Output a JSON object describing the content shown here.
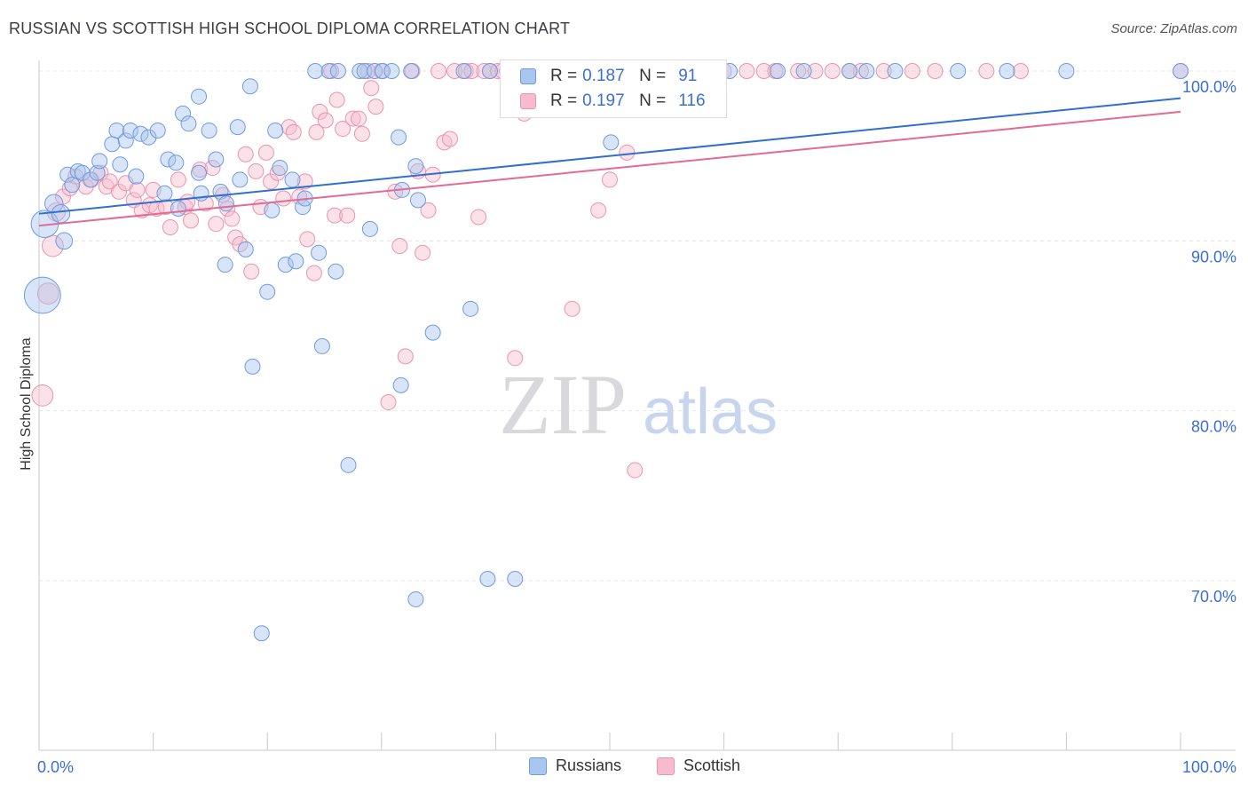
{
  "header": {
    "title": "RUSSIAN VS SCOTTISH HIGH SCHOOL DIPLOMA CORRELATION CHART",
    "source": "Source: ZipAtlas.com"
  },
  "watermark": {
    "zip": "ZIP",
    "atlas": "atlas"
  },
  "colors": {
    "russians_fill": "#a9c6ef",
    "russians_stroke": "#6f9be0",
    "russians_line": "#2f6fd1",
    "scottish_fill": "#f6bccd",
    "scottish_stroke": "#ec93ae",
    "scottish_line": "#e36a95",
    "tick_label": "#3a6fd8",
    "grid": "#e4e4ea"
  },
  "legend_top": {
    "russians": {
      "r_label": "R =",
      "r_value": "0.187",
      "n_label": "N =",
      "n_value": "91"
    },
    "scottish": {
      "r_label": "R =",
      "r_value": "0.197",
      "n_label": "N =",
      "n_value": "116"
    }
  },
  "legend_bottom": {
    "russians": "Russians",
    "scottish": "Scottish"
  },
  "chart_data": {
    "type": "scatter",
    "title": "RUSSIAN VS SCOTTISH HIGH SCHOOL DIPLOMA CORRELATION CHART",
    "xlabel": "",
    "ylabel": "High School Diploma",
    "xlim": [
      0,
      100
    ],
    "ylim": [
      60,
      101
    ],
    "x_tick_labels": [
      "0.0%",
      "100.0%"
    ],
    "y_ticks": [
      70,
      80,
      90,
      100
    ],
    "y_tick_labels": [
      "70.0%",
      "80.0%",
      "90.0%",
      "100.0%"
    ],
    "grid": true,
    "legend_position": "top-center",
    "series": [
      {
        "name": "Russians",
        "r": 0.187,
        "n": 91,
        "trend": {
          "x": [
            0,
            100
          ],
          "y": [
            91.6,
            98.4
          ]
        },
        "points": [
          [
            0.5,
            91.0,
            18
          ],
          [
            0.3,
            86.8,
            24
          ],
          [
            1.3,
            92.2,
            12
          ],
          [
            1.9,
            91.6,
            12
          ],
          [
            2.2,
            90.0,
            11
          ],
          [
            2.5,
            93.9,
            10
          ],
          [
            2.9,
            93.3,
            10
          ],
          [
            3.4,
            94.1,
            10
          ],
          [
            3.8,
            94.0,
            10
          ],
          [
            4.5,
            93.6,
            10
          ],
          [
            5.1,
            94.0,
            10
          ],
          [
            5.3,
            94.7,
            10
          ],
          [
            6.4,
            95.7,
            10
          ],
          [
            6.8,
            96.5,
            10
          ],
          [
            7.6,
            95.9,
            10
          ],
          [
            7.1,
            94.5,
            10
          ],
          [
            8.0,
            96.5,
            10
          ],
          [
            8.9,
            96.3,
            10
          ],
          [
            8.5,
            93.8,
            10
          ],
          [
            9.6,
            96.1,
            10
          ],
          [
            10.4,
            96.5,
            10
          ],
          [
            11.0,
            92.8,
            10
          ],
          [
            11.3,
            94.8,
            10
          ],
          [
            12.0,
            94.6,
            10
          ],
          [
            12.2,
            91.9,
            10
          ],
          [
            12.6,
            97.5,
            10
          ],
          [
            13.1,
            96.9,
            10
          ],
          [
            14.0,
            94.0,
            10
          ],
          [
            14.2,
            92.8,
            10
          ],
          [
            14.0,
            98.5,
            10
          ],
          [
            14.9,
            96.5,
            10
          ],
          [
            15.5,
            94.8,
            10
          ],
          [
            15.9,
            92.9,
            10
          ],
          [
            16.3,
            88.6,
            10
          ],
          [
            16.4,
            92.2,
            10
          ],
          [
            17.4,
            96.7,
            10
          ],
          [
            17.6,
            93.6,
            10
          ],
          [
            18.1,
            89.5,
            10
          ],
          [
            18.5,
            99.1,
            10
          ],
          [
            18.7,
            82.6,
            10
          ],
          [
            19.5,
            66.9,
            10
          ],
          [
            20.0,
            87.0,
            10
          ],
          [
            20.4,
            91.8,
            10
          ],
          [
            20.7,
            96.5,
            10
          ],
          [
            21.1,
            94.3,
            10
          ],
          [
            21.6,
            88.6,
            10
          ],
          [
            22.2,
            93.6,
            10
          ],
          [
            22.5,
            88.8,
            10
          ],
          [
            23.1,
            92.0,
            10
          ],
          [
            23.3,
            92.5,
            10
          ],
          [
            24.2,
            100.0,
            10
          ],
          [
            24.5,
            89.3,
            10
          ],
          [
            24.8,
            83.8,
            10
          ],
          [
            25.4,
            100.0,
            10
          ],
          [
            26.0,
            88.2,
            10
          ],
          [
            26.2,
            100.0,
            10
          ],
          [
            27.1,
            76.8,
            10
          ],
          [
            28.1,
            100.0,
            10
          ],
          [
            28.5,
            100.0,
            10
          ],
          [
            29.0,
            90.7,
            10
          ],
          [
            29.4,
            100.0,
            10
          ],
          [
            30.1,
            100.0,
            10
          ],
          [
            30.9,
            100.0,
            10
          ],
          [
            31.5,
            96.1,
            10
          ],
          [
            31.7,
            81.5,
            10
          ],
          [
            31.8,
            93.0,
            10
          ],
          [
            32.6,
            100.0,
            10
          ],
          [
            33.0,
            68.9,
            10
          ],
          [
            33.0,
            94.4,
            10
          ],
          [
            33.2,
            92.4,
            10
          ],
          [
            34.5,
            84.6,
            10
          ],
          [
            37.2,
            100.0,
            10
          ],
          [
            37.8,
            86.0,
            10
          ],
          [
            39.3,
            70.1,
            10
          ],
          [
            39.5,
            100.0,
            10
          ],
          [
            41.7,
            70.1,
            10
          ],
          [
            46.0,
            100.0,
            10
          ],
          [
            50.0,
            100.0,
            10
          ],
          [
            50.1,
            95.8,
            10
          ],
          [
            55.0,
            100.0,
            10
          ],
          [
            57.4,
            100.0,
            10
          ],
          [
            60.5,
            100.0,
            10
          ],
          [
            64.7,
            100.0,
            10
          ],
          [
            67.0,
            100.0,
            10
          ],
          [
            71.0,
            100.0,
            10
          ],
          [
            72.5,
            100.0,
            10
          ],
          [
            75.0,
            100.0,
            10
          ],
          [
            80.5,
            100.0,
            10
          ],
          [
            84.8,
            100.0,
            10
          ],
          [
            90.0,
            100.0,
            10
          ],
          [
            100.0,
            100.0,
            10
          ]
        ]
      },
      {
        "name": "Scottish",
        "r": 0.197,
        "n": 116,
        "trend": {
          "x": [
            0,
            100
          ],
          "y": [
            90.9,
            97.6
          ]
        },
        "points": [
          [
            0.3,
            80.9,
            14
          ],
          [
            1.2,
            89.7,
            14
          ],
          [
            0.8,
            86.9,
            14
          ],
          [
            1.5,
            91.7,
            12
          ],
          [
            2.1,
            92.6,
            10
          ],
          [
            2.7,
            93.1,
            10
          ],
          [
            3.2,
            93.8,
            10
          ],
          [
            4.1,
            93.2,
            10
          ],
          [
            4.6,
            93.6,
            10
          ],
          [
            5.4,
            94.0,
            10
          ],
          [
            5.9,
            93.2,
            10
          ],
          [
            6.2,
            93.5,
            10
          ],
          [
            7.0,
            92.9,
            10
          ],
          [
            7.6,
            93.4,
            10
          ],
          [
            8.3,
            92.4,
            10
          ],
          [
            8.6,
            93.0,
            10
          ],
          [
            9.0,
            91.8,
            10
          ],
          [
            9.7,
            92.1,
            10
          ],
          [
            10.0,
            93.0,
            10
          ],
          [
            10.3,
            91.9,
            10
          ],
          [
            11.1,
            92.0,
            10
          ],
          [
            11.5,
            90.8,
            10
          ],
          [
            12.2,
            93.6,
            10
          ],
          [
            12.8,
            92.0,
            10
          ],
          [
            13.0,
            92.3,
            10
          ],
          [
            13.3,
            91.2,
            10
          ],
          [
            14.1,
            94.2,
            10
          ],
          [
            14.6,
            92.2,
            10
          ],
          [
            15.2,
            94.3,
            10
          ],
          [
            15.5,
            91.0,
            10
          ],
          [
            16.1,
            92.7,
            10
          ],
          [
            16.5,
            91.9,
            10
          ],
          [
            16.9,
            91.3,
            10
          ],
          [
            17.2,
            90.2,
            10
          ],
          [
            17.6,
            89.8,
            10
          ],
          [
            18.1,
            95.1,
            10
          ],
          [
            18.6,
            88.2,
            10
          ],
          [
            19.0,
            94.1,
            10
          ],
          [
            19.4,
            92.0,
            10
          ],
          [
            19.9,
            95.2,
            10
          ],
          [
            20.3,
            93.5,
            10
          ],
          [
            20.9,
            94.0,
            10
          ],
          [
            21.4,
            92.5,
            10
          ],
          [
            21.9,
            96.7,
            10
          ],
          [
            22.3,
            96.4,
            10
          ],
          [
            22.8,
            92.6,
            10
          ],
          [
            23.3,
            93.5,
            10
          ],
          [
            23.5,
            90.1,
            10
          ],
          [
            24.1,
            88.1,
            10
          ],
          [
            24.3,
            96.4,
            10
          ],
          [
            24.6,
            97.6,
            10
          ],
          [
            25.1,
            97.1,
            10
          ],
          [
            25.6,
            100.0,
            10
          ],
          [
            25.9,
            91.5,
            10
          ],
          [
            26.1,
            98.3,
            10
          ],
          [
            26.6,
            96.6,
            10
          ],
          [
            27.0,
            91.5,
            10
          ],
          [
            27.5,
            97.2,
            10
          ],
          [
            28.0,
            97.2,
            10
          ],
          [
            28.3,
            96.3,
            10
          ],
          [
            28.8,
            100.0,
            10
          ],
          [
            29.1,
            99.0,
            10
          ],
          [
            29.5,
            97.9,
            10
          ],
          [
            30.0,
            100.0,
            10
          ],
          [
            30.6,
            80.5,
            10
          ],
          [
            31.2,
            92.9,
            10
          ],
          [
            31.6,
            89.7,
            10
          ],
          [
            32.1,
            83.2,
            10
          ],
          [
            32.7,
            100.0,
            10
          ],
          [
            33.2,
            94.1,
            10
          ],
          [
            33.6,
            89.3,
            10
          ],
          [
            34.1,
            91.8,
            10
          ],
          [
            34.5,
            93.9,
            10
          ],
          [
            35.0,
            100.0,
            10
          ],
          [
            35.5,
            95.8,
            10
          ],
          [
            36.0,
            96.0,
            10
          ],
          [
            36.4,
            100.0,
            10
          ],
          [
            37.4,
            100.0,
            10
          ],
          [
            37.9,
            100.0,
            10
          ],
          [
            38.5,
            91.4,
            10
          ],
          [
            39.0,
            100.0,
            10
          ],
          [
            39.5,
            100.0,
            10
          ],
          [
            40.2,
            100.0,
            10
          ],
          [
            40.6,
            100.0,
            10
          ],
          [
            41.0,
            100.0,
            10
          ],
          [
            41.5,
            100.0,
            10
          ],
          [
            41.7,
            83.1,
            10
          ],
          [
            42.5,
            97.5,
            10
          ],
          [
            43.0,
            100.0,
            10
          ],
          [
            44.0,
            100.0,
            10
          ],
          [
            45.0,
            100.0,
            10
          ],
          [
            45.5,
            100.0,
            10
          ],
          [
            46.7,
            86.0,
            10
          ],
          [
            47.5,
            100.0,
            10
          ],
          [
            49.0,
            91.8,
            10
          ],
          [
            50.0,
            93.6,
            10
          ],
          [
            51.5,
            95.2,
            10
          ],
          [
            52.2,
            76.5,
            10
          ],
          [
            54.0,
            100.0,
            10
          ],
          [
            56.0,
            100.0,
            10
          ],
          [
            58.0,
            100.0,
            10
          ],
          [
            60.0,
            100.0,
            10
          ],
          [
            62.0,
            100.0,
            10
          ],
          [
            63.5,
            100.0,
            10
          ],
          [
            64.5,
            100.0,
            10
          ],
          [
            66.5,
            100.0,
            10
          ],
          [
            68.0,
            100.0,
            10
          ],
          [
            69.5,
            100.0,
            10
          ],
          [
            71.0,
            100.0,
            10
          ],
          [
            72.0,
            100.0,
            10
          ],
          [
            74.0,
            100.0,
            10
          ],
          [
            76.5,
            100.0,
            10
          ],
          [
            78.5,
            100.0,
            10
          ],
          [
            83.0,
            100.0,
            10
          ],
          [
            86.0,
            100.0,
            10
          ],
          [
            100.0,
            100.0,
            10
          ]
        ]
      }
    ]
  }
}
